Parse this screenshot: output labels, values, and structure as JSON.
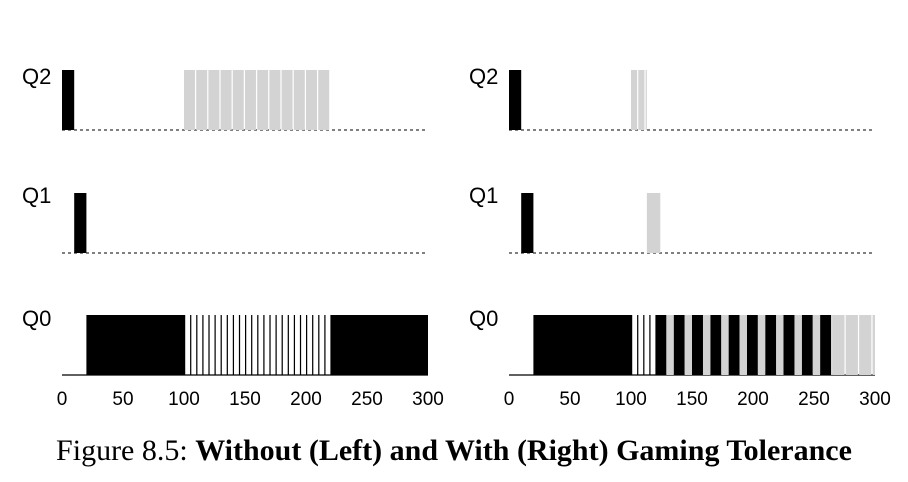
{
  "caption": {
    "label": "Figure 8.5:",
    "title": "Without (Left) and With (Right) Gaming Tolerance"
  },
  "colors": {
    "job_a": "#000000",
    "job_b": "#d3d3d3",
    "baseline": "#000000"
  },
  "chart_data": [
    {
      "type": "timeline",
      "queues": [
        "Q2",
        "Q1",
        "Q0"
      ],
      "x_ticks": [
        "0",
        "50",
        "100",
        "150",
        "200",
        "250",
        "300"
      ],
      "xlim": [
        0,
        300
      ],
      "series": [
        {
          "color": "#000000",
          "segments": [
            {
              "queue": "Q2",
              "start": 0,
              "end": 10
            },
            {
              "queue": "Q1",
              "start": 10,
              "end": 20
            },
            {
              "queue": "Q0",
              "start": 20,
              "end": 100
            },
            {
              "queue": "Q0",
              "start": 100,
              "end": 220,
              "pattern": "interleaved",
              "slice": 1,
              "period": 5
            },
            {
              "queue": "Q0",
              "start": 220,
              "end": 300
            }
          ]
        },
        {
          "color": "#d3d3d3",
          "segments": [
            {
              "queue": "Q2",
              "start": 100,
              "end": 220,
              "pattern": "interleaved",
              "slice": 9,
              "period": 10
            }
          ]
        }
      ]
    },
    {
      "type": "timeline",
      "queues": [
        "Q2",
        "Q1",
        "Q0"
      ],
      "x_ticks": [
        "0",
        "50",
        "100",
        "150",
        "200",
        "250",
        "300"
      ],
      "xlim": [
        0,
        300
      ],
      "series": [
        {
          "color": "#000000",
          "segments": [
            {
              "queue": "Q2",
              "start": 0,
              "end": 10
            },
            {
              "queue": "Q1",
              "start": 10,
              "end": 20
            },
            {
              "queue": "Q0",
              "start": 20,
              "end": 100
            },
            {
              "queue": "Q0",
              "start": 100,
              "end": 120,
              "pattern": "interleaved",
              "slice": 1,
              "period": 5
            },
            {
              "queue": "Q0",
              "start": 120,
              "end": 265,
              "pattern": "interleaved",
              "slice": 9,
              "period": 15
            }
          ]
        },
        {
          "color": "#d3d3d3",
          "segments": [
            {
              "queue": "Q2",
              "start": 100,
              "end": 113,
              "pattern": "interleaved",
              "slice": 5,
              "period": 6
            },
            {
              "queue": "Q1",
              "start": 113,
              "end": 124
            },
            {
              "queue": "Q0",
              "start": 129,
              "end": 265,
              "pattern": "interleaved",
              "slice": 6,
              "period": 15
            },
            {
              "queue": "Q0",
              "start": 265,
              "end": 300,
              "pattern": "interleaved",
              "slice": 10,
              "period": 11
            }
          ]
        }
      ]
    }
  ]
}
